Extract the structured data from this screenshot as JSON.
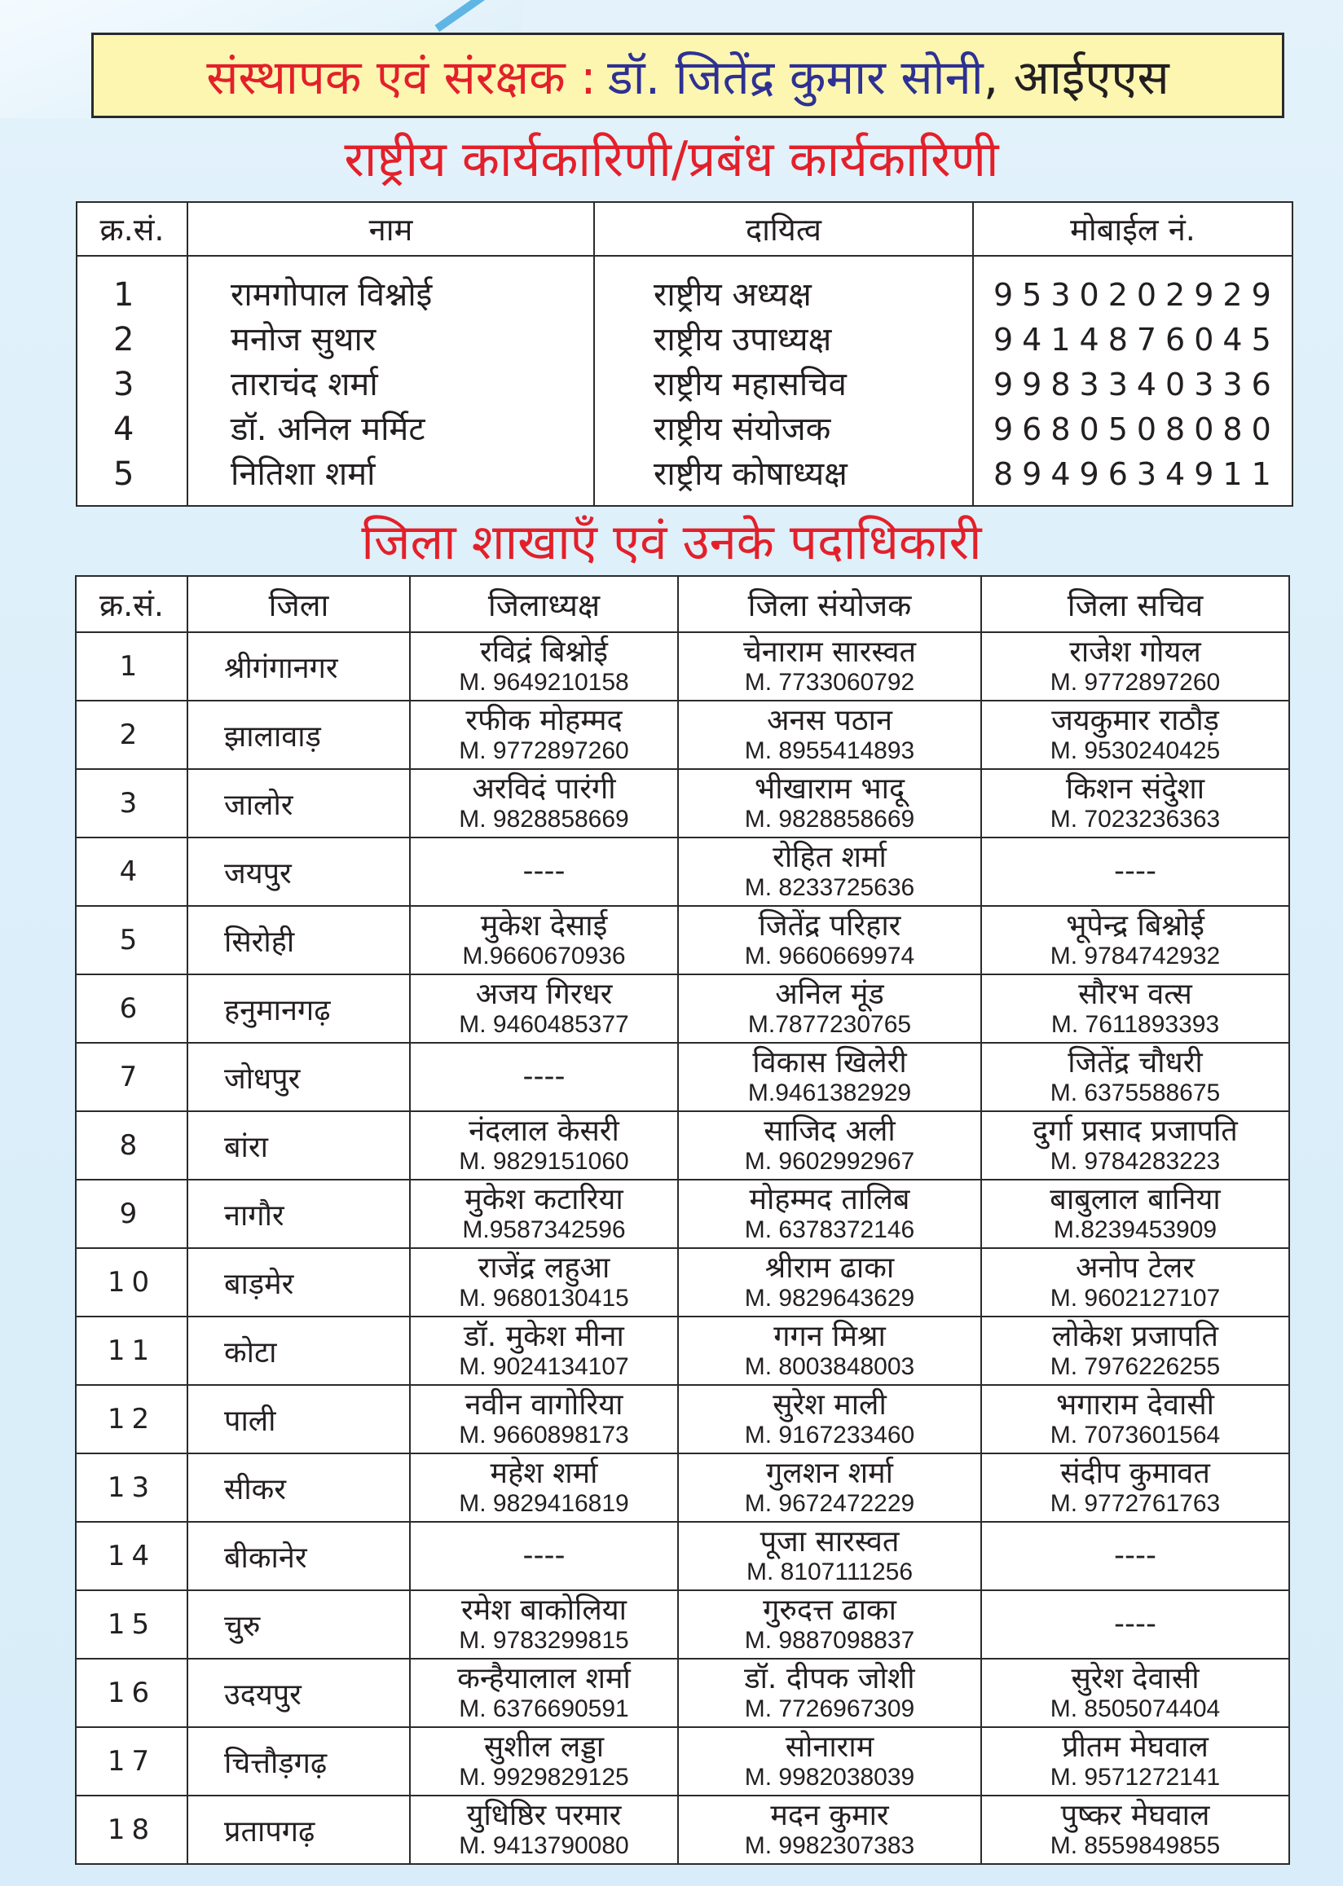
{
  "banner": {
    "label": "संस्थापक एवं संरक्षक :",
    "name": "डॉ. जितेंद्र कुमार सोनी",
    "suffix": ", आईएएस"
  },
  "national": {
    "title": "राष्ट्रीय कार्यकारिणी/प्रबंध कार्यकारिणी",
    "headers": [
      "क्र.सं.",
      "नाम",
      "दायित्व",
      "मोबाईल नं."
    ],
    "rows": [
      {
        "sn": "1",
        "name": "रामगोपाल विश्नोई",
        "role": "राष्ट्रीय अध्यक्ष",
        "mobile": "9530202929"
      },
      {
        "sn": "2",
        "name": "मनोज सुथार",
        "role": "राष्ट्रीय उपाध्यक्ष",
        "mobile": "9414876045"
      },
      {
        "sn": "3",
        "name": "ताराचंद शर्मा",
        "role": "राष्ट्रीय महासचिव",
        "mobile": "9983340336"
      },
      {
        "sn": "4",
        "name": "डॉ. अनिल मर्मिट",
        "role": "राष्ट्रीय संयोजक",
        "mobile": "9680508080"
      },
      {
        "sn": "5",
        "name": "नितिशा शर्मा",
        "role": "राष्ट्रीय कोषाध्यक्ष",
        "mobile": "8949634911"
      }
    ]
  },
  "district": {
    "title": "जिला शाखाएँ एवं उनके पदाधिकारी",
    "headers": [
      "क्र.सं.",
      "जिला",
      "जिलाध्यक्ष",
      "जिला संयोजक",
      "जिला सचिव"
    ],
    "rows": [
      {
        "sn": "1",
        "district": "श्रीगंगानगर",
        "president": {
          "name": "रविद्रं बिश्नोई",
          "mobile": "M. 9649210158"
        },
        "convener": {
          "name": "चेनाराम सारस्वत",
          "mobile": "M. 7733060792"
        },
        "secretary": {
          "name": "राजेश गोयल",
          "mobile": "M. 9772897260"
        }
      },
      {
        "sn": "2",
        "district": "झालावाड़",
        "president": {
          "name": "रफीक मोहम्मद",
          "mobile": "M. 9772897260"
        },
        "convener": {
          "name": "अनस पठान",
          "mobile": "M. 8955414893"
        },
        "secretary": {
          "name": "जयकुमार राठौड़",
          "mobile": "M. 9530240425"
        }
      },
      {
        "sn": "3",
        "district": "जालोर",
        "president": {
          "name": "अरविदं पारंगी",
          "mobile": "M. 9828858669"
        },
        "convener": {
          "name": "भीखाराम भादू",
          "mobile": "M. 9828858669"
        },
        "secretary": {
          "name": "किशन संदुेशा",
          "mobile": "M. 7023236363"
        }
      },
      {
        "sn": "4",
        "district": "जयपुर",
        "president": {
          "name": "----",
          "mobile": ""
        },
        "convener": {
          "name": "रोहित शर्मा",
          "mobile": "M. 8233725636"
        },
        "secretary": {
          "name": "----",
          "mobile": ""
        }
      },
      {
        "sn": "5",
        "district": "सिरोही",
        "president": {
          "name": "मुकेश देसाई",
          "mobile": "M.9660670936"
        },
        "convener": {
          "name": "जितेंद्र परिहार",
          "mobile": "M. 9660669974"
        },
        "secretary": {
          "name": "भूपेन्द्र बिश्नोई",
          "mobile": "M. 9784742932"
        }
      },
      {
        "sn": "6",
        "district": "हनुमानगढ़",
        "president": {
          "name": "अजय गिरधर",
          "mobile": "M. 9460485377"
        },
        "convener": {
          "name": "अनिल मूंड",
          "mobile": "M.7877230765"
        },
        "secretary": {
          "name": "सौरभ वत्स",
          "mobile": "M. 7611893393"
        }
      },
      {
        "sn": "7",
        "district": "जोधपुर",
        "president": {
          "name": "----",
          "mobile": ""
        },
        "convener": {
          "name": "विकास खिलेरी",
          "mobile": "M.9461382929"
        },
        "secretary": {
          "name": "जितेंद्र चौधरी",
          "mobile": "M. 6375588675"
        }
      },
      {
        "sn": "8",
        "district": "बांरा",
        "president": {
          "name": "नंदलाल केसरी",
          "mobile": "M. 9829151060"
        },
        "convener": {
          "name": "साजिद अली",
          "mobile": "M. 9602992967"
        },
        "secretary": {
          "name": "दुर्गा प्रसाद प्रजापति",
          "mobile": "M. 9784283223"
        }
      },
      {
        "sn": "9",
        "district": "नागौर",
        "president": {
          "name": "मुकेश कटारिया",
          "mobile": "M.9587342596"
        },
        "convener": {
          "name": "मोहम्मद तालिब",
          "mobile": "M. 6378372146"
        },
        "secretary": {
          "name": "बाबुलाल बानिया",
          "mobile": "M.8239453909"
        }
      },
      {
        "sn": "10",
        "district": "बाड़मेर",
        "president": {
          "name": "राजेंद्र लहुआ",
          "mobile": "M. 9680130415"
        },
        "convener": {
          "name": "श्रीराम ढाका",
          "mobile": "M. 9829643629"
        },
        "secretary": {
          "name": "अनोप टेलर",
          "mobile": "M. 9602127107"
        }
      },
      {
        "sn": "11",
        "district": "कोटा",
        "president": {
          "name": "डॉ. मुकेश मीना",
          "mobile": "M. 9024134107"
        },
        "convener": {
          "name": "गगन मिश्रा",
          "mobile": "M. 8003848003"
        },
        "secretary": {
          "name": "लोकेश प्रजापति",
          "mobile": "M. 7976226255"
        }
      },
      {
        "sn": "12",
        "district": "पाली",
        "president": {
          "name": "नवीन वागोरिया",
          "mobile": "M. 9660898173"
        },
        "convener": {
          "name": "सुरेश माली",
          "mobile": "M. 9167233460"
        },
        "secretary": {
          "name": "भगाराम देवासी",
          "mobile": "M. 7073601564"
        }
      },
      {
        "sn": "13",
        "district": "सीकर",
        "president": {
          "name": "महेश शर्मा",
          "mobile": "M. 9829416819"
        },
        "convener": {
          "name": "गुलशन शर्मा",
          "mobile": "M. 9672472229"
        },
        "secretary": {
          "name": "संदीप कुमावत",
          "mobile": "M. 9772761763"
        }
      },
      {
        "sn": "14",
        "district": "बीकानेर",
        "president": {
          "name": "----",
          "mobile": ""
        },
        "convener": {
          "name": "पूजा सारस्वत",
          "mobile": "M. 8107111256"
        },
        "secretary": {
          "name": "----",
          "mobile": ""
        }
      },
      {
        "sn": "15",
        "district": "चुरु",
        "president": {
          "name": "रमेश बाकोलिया",
          "mobile": "M. 9783299815"
        },
        "convener": {
          "name": "गुरुदत्त ढाका",
          "mobile": "M. 9887098837"
        },
        "secretary": {
          "name": "----",
          "mobile": ""
        }
      },
      {
        "sn": "16",
        "district": "उदयपुर",
        "president": {
          "name": "कन्हैयालाल शर्मा",
          "mobile": "M. 6376690591"
        },
        "convener": {
          "name": "डॉ. दीपक जोशी",
          "mobile": "M. 7726967309"
        },
        "secretary": {
          "name": "सुरेश देवासी",
          "mobile": "M. 8505074404"
        }
      },
      {
        "sn": "17",
        "district": "चित्तौड़गढ़",
        "president": {
          "name": "सुशील लड्डा",
          "mobile": "M. 9929829125"
        },
        "convener": {
          "name": "सोनाराम",
          "mobile": "M. 9982038039"
        },
        "secretary": {
          "name": "प्रीतम मेघवाल",
          "mobile": "M. 9571272141"
        }
      },
      {
        "sn": "18",
        "district": "प्रतापगढ़",
        "president": {
          "name": "युधिष्ठिर परमार",
          "mobile": "M. 9413790080"
        },
        "convener": {
          "name": "मदन कुमार",
          "mobile": "M. 9982307383"
        },
        "secretary": {
          "name": "पुष्कर मेघवाल",
          "mobile": "M. 8559849855"
        }
      }
    ]
  },
  "colors": {
    "accent_red": "#e3202a",
    "name_blue": "#2e3192",
    "banner_bg": "#fcf6b1"
  }
}
